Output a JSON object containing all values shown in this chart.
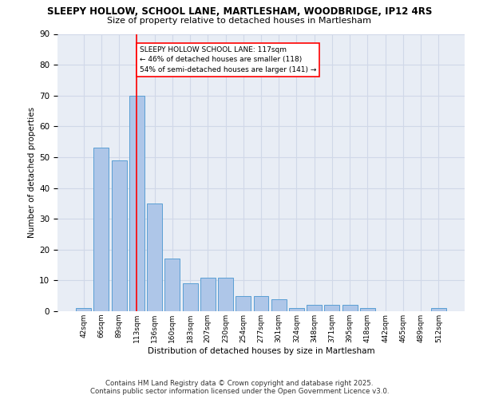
{
  "title1": "SLEEPY HOLLOW, SCHOOL LANE, MARTLESHAM, WOODBRIDGE, IP12 4RS",
  "title2": "Size of property relative to detached houses in Martlesham",
  "xlabel": "Distribution of detached houses by size in Martlesham",
  "ylabel": "Number of detached properties",
  "categories": [
    "42sqm",
    "66sqm",
    "89sqm",
    "113sqm",
    "136sqm",
    "160sqm",
    "183sqm",
    "207sqm",
    "230sqm",
    "254sqm",
    "277sqm",
    "301sqm",
    "324sqm",
    "348sqm",
    "371sqm",
    "395sqm",
    "418sqm",
    "442sqm",
    "465sqm",
    "489sqm",
    "512sqm"
  ],
  "values": [
    1,
    53,
    49,
    70,
    35,
    17,
    9,
    11,
    11,
    5,
    5,
    4,
    1,
    2,
    2,
    2,
    1,
    0,
    0,
    0,
    1
  ],
  "bar_color": "#aec6e8",
  "bar_edge_color": "#5a9fd4",
  "grid_color": "#d0d8e8",
  "background_color": "#e8edf5",
  "vline_x": 3,
  "vline_color": "red",
  "annotation_text": "SLEEPY HOLLOW SCHOOL LANE: 117sqm\n← 46% of detached houses are smaller (118)\n54% of semi-detached houses are larger (141) →",
  "annotation_box_color": "white",
  "annotation_box_edge": "red",
  "ylim": [
    0,
    90
  ],
  "yticks": [
    0,
    10,
    20,
    30,
    40,
    50,
    60,
    70,
    80,
    90
  ],
  "footer1": "Contains HM Land Registry data © Crown copyright and database right 2025.",
  "footer2": "Contains public sector information licensed under the Open Government Licence v3.0."
}
